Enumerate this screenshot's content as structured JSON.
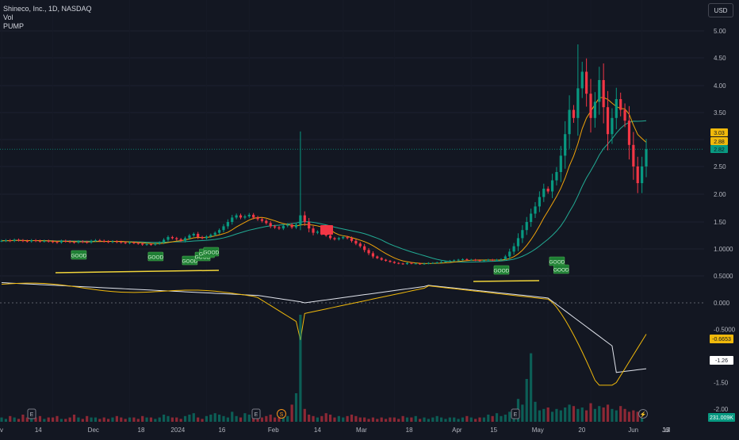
{
  "header": {
    "symbol": "Shineco, Inc., 1D, NASDAQ",
    "indicator_vol": "Vol",
    "indicator_pump": "PUMP",
    "currency": "USD"
  },
  "chart_data": [
    {
      "type": "candlestick",
      "title": "Shineco, Inc., 1D, NASDAQ",
      "x_ticks": [
        "v",
        "14",
        "Dec",
        "18",
        "2024",
        "16",
        "Feb",
        "14",
        "Mar",
        "18",
        "Apr",
        "15",
        "May",
        "20",
        "Jun",
        "17",
        "Jul",
        "15"
      ],
      "y_ticks": [
        "5.00",
        "4.50",
        "4.00",
        "3.50",
        "3.00",
        "2.50",
        "2.00",
        "1.50",
        "1.0000",
        "0.5000"
      ],
      "ylim": [
        0.5,
        5.0
      ],
      "price_labels": [
        {
          "value": "3.03",
          "color": "#f0b90b"
        },
        {
          "value": "2.88",
          "color": "#f0b90b"
        },
        {
          "value": "2.82",
          "color": "#089981"
        }
      ],
      "series": [
        {
          "name": "Price",
          "values_close": [
            1.15,
            1.16,
            1.15,
            1.17,
            1.16,
            1.15,
            1.14,
            1.16,
            1.15,
            1.14,
            1.15,
            1.14,
            1.13,
            1.12,
            1.15,
            1.14,
            1.13,
            1.12,
            1.14,
            1.13,
            1.12,
            1.15,
            1.16,
            1.15,
            1.14,
            1.13,
            1.14,
            1.13,
            1.12,
            1.11,
            1.12,
            1.11,
            1.1,
            1.08,
            1.09,
            1.08,
            1.1,
            1.12,
            1.17,
            1.22,
            1.2,
            1.18,
            1.15,
            1.2,
            1.25,
            1.28,
            1.22,
            1.2,
            1.23,
            1.26,
            1.3,
            1.35,
            1.42,
            1.5,
            1.58,
            1.62,
            1.58,
            1.6,
            1.63,
            1.58,
            1.55,
            1.52,
            1.48,
            1.42,
            1.4,
            1.38,
            1.43,
            1.45,
            1.4,
            1.45,
            1.62,
            1.5,
            1.38,
            1.3,
            1.32,
            1.28,
            1.25,
            1.2,
            1.18,
            1.2,
            1.22,
            1.2,
            1.15,
            1.1,
            1.05,
            0.98,
            0.92,
            0.86,
            0.83,
            0.8,
            0.78,
            0.76,
            0.74,
            0.73,
            0.72,
            0.74,
            0.73,
            0.73,
            0.72,
            0.73,
            0.74,
            0.74,
            0.75,
            0.76,
            0.77,
            0.78,
            0.79,
            0.8,
            0.81,
            0.8,
            0.8,
            0.79,
            0.78,
            0.79,
            0.8,
            0.79,
            0.8,
            0.81,
            0.86,
            0.95,
            1.05,
            1.2,
            1.35,
            1.5,
            1.65,
            1.78,
            1.95,
            2.1,
            2.05,
            2.25,
            2.4,
            2.7,
            3.1,
            3.55,
            3.4,
            3.95,
            4.25,
            3.85,
            3.4,
            3.7,
            4.1,
            3.6,
            3.1,
            3.4,
            3.75,
            3.55,
            3.35,
            2.9,
            2.5,
            2.2,
            2.5,
            2.82
          ]
        },
        {
          "name": "MA fast",
          "color": "#f0a30a"
        },
        {
          "name": "MA slow",
          "color": "#22ab94"
        }
      ]
    },
    {
      "type": "line",
      "title": "PUMP",
      "y_ticks": [
        "0.000",
        "-0.5000",
        "-1.50",
        "-2.00"
      ],
      "ylim": [
        -2.0,
        0.5
      ],
      "value_labels": [
        {
          "value": "-0.6653",
          "color": "#f0b90b"
        },
        {
          "value": "-1.26",
          "color": "#ffffff"
        }
      ],
      "series": [
        {
          "name": "signal",
          "color": "#f0b90b"
        },
        {
          "name": "baseline",
          "color": "#e0e3eb"
        }
      ]
    },
    {
      "type": "bar",
      "title": "Vol",
      "value_label": "231.009K",
      "volume_values": [
        3,
        2,
        4,
        3,
        2,
        5,
        3,
        2,
        3,
        4,
        2,
        3,
        3,
        4,
        2,
        2,
        3,
        5,
        3,
        2,
        4,
        3,
        3,
        2,
        3,
        2,
        3,
        4,
        3,
        2,
        3,
        3,
        2,
        4,
        3,
        3,
        2,
        3,
        5,
        4,
        3,
        3,
        2,
        4,
        5,
        6,
        3,
        2,
        4,
        5,
        6,
        5,
        4,
        3,
        7,
        4,
        3,
        6,
        5,
        8,
        4,
        3,
        4,
        5,
        3,
        3,
        5,
        4,
        12,
        20,
        75,
        9,
        5,
        4,
        3,
        4,
        6,
        5,
        3,
        4,
        3,
        4,
        5,
        4,
        3,
        3,
        2,
        3,
        2,
        3,
        2,
        3,
        3,
        2,
        4,
        3,
        3,
        4,
        2,
        3,
        2,
        3,
        4,
        3,
        2,
        3,
        3,
        2,
        3,
        4,
        3,
        2,
        3,
        3,
        5,
        4,
        6,
        4,
        5,
        7,
        9,
        16,
        12,
        30,
        48,
        14,
        8,
        9,
        10,
        7,
        9,
        8,
        10,
        12,
        11,
        9,
        10,
        8,
        13,
        9,
        11,
        10,
        12,
        9,
        8,
        11,
        9,
        7,
        8,
        7,
        6
      ]
    }
  ],
  "signals": {
    "label_good": "GOOD",
    "label_red": "SELL"
  },
  "markers": {
    "earnings": "E",
    "split": "S",
    "flash": "⚡"
  }
}
